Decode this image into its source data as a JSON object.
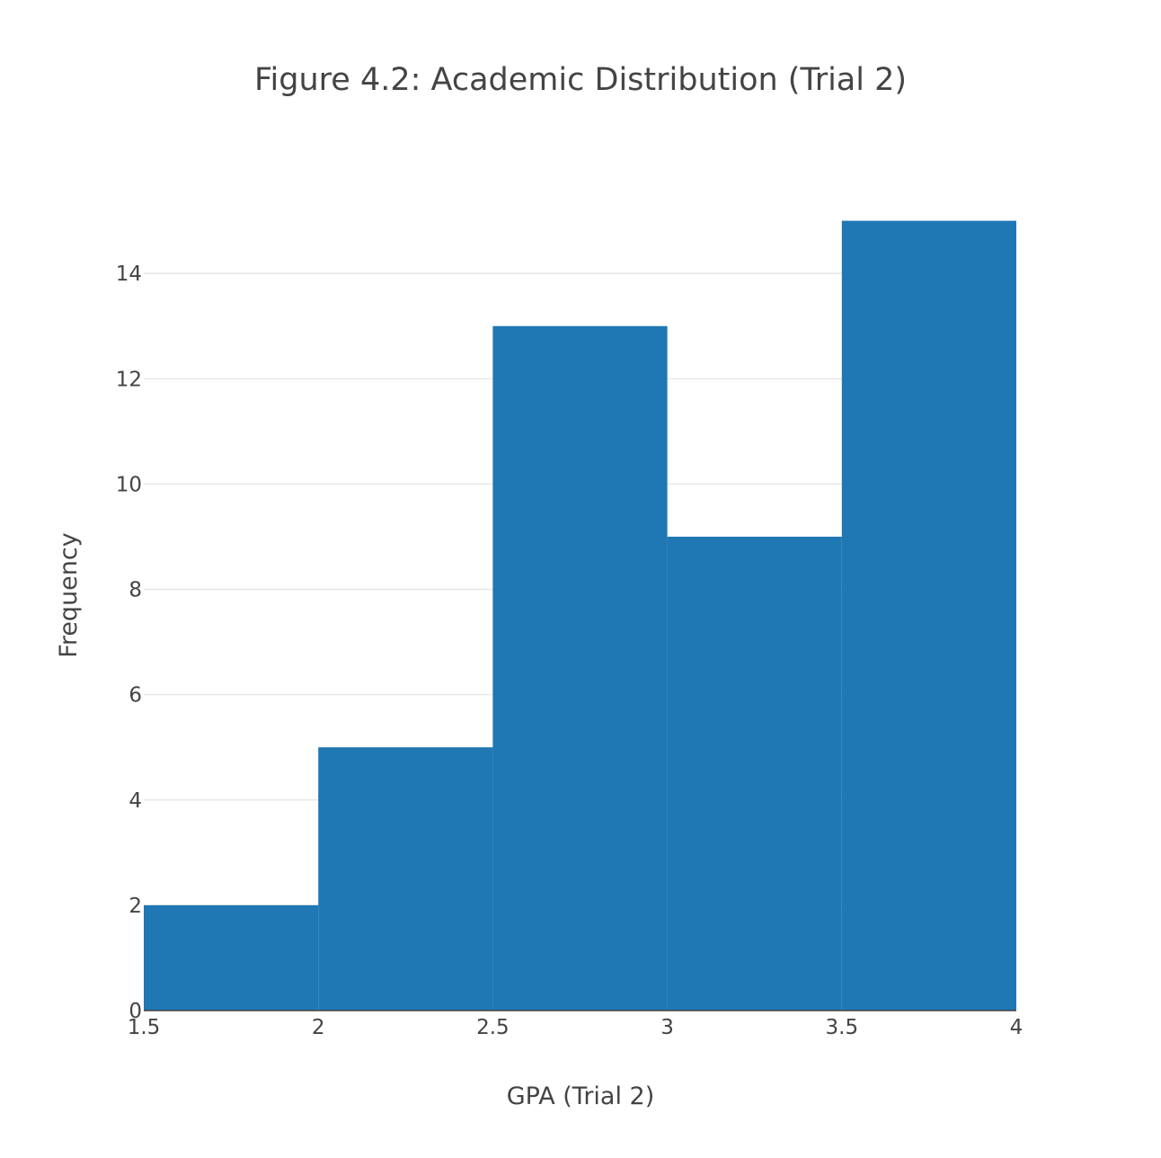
{
  "chart_data": {
    "type": "bar",
    "subtype": "histogram",
    "title": "Figure 4.2: Academic Distribution (Trial 2)",
    "xlabel": "GPA  (Trial 2)",
    "ylabel": "Frequency",
    "bins": [
      {
        "start": 1.5,
        "end": 2.0,
        "count": 2
      },
      {
        "start": 2.0,
        "end": 2.5,
        "count": 5
      },
      {
        "start": 2.5,
        "end": 3.0,
        "count": 13
      },
      {
        "start": 3.0,
        "end": 3.5,
        "count": 9
      },
      {
        "start": 3.5,
        "end": 4.0,
        "count": 15
      }
    ],
    "xlim": [
      1.5,
      4.0
    ],
    "ylim": [
      0,
      15
    ],
    "x_ticks": [
      1.5,
      2,
      2.5,
      3,
      3.5,
      4
    ],
    "x_tick_labels": [
      "1.5",
      "2",
      "2.5",
      "3",
      "3.5",
      "4"
    ],
    "y_ticks": [
      0,
      2,
      4,
      6,
      8,
      10,
      12,
      14
    ],
    "y_tick_labels": [
      "0",
      "2",
      "4",
      "6",
      "8",
      "10",
      "12",
      "14"
    ],
    "grid": {
      "x": false,
      "y": true
    },
    "legend": "none",
    "colors": {
      "bar": "#1f77b4",
      "grid": "#e8e8e8",
      "text": "#444444"
    }
  }
}
